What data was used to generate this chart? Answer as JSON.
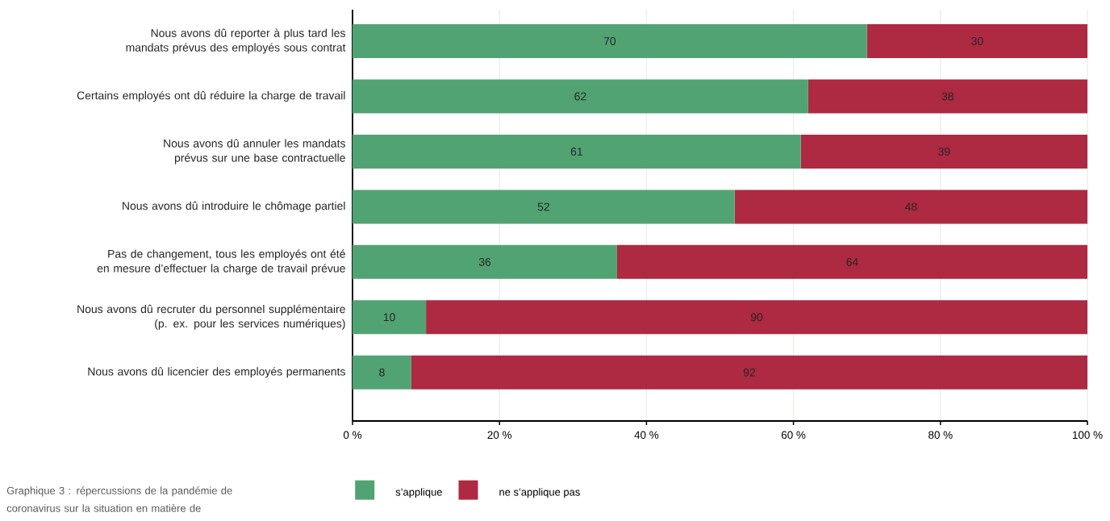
{
  "chart_data": {
    "type": "bar",
    "orientation": "horizontal",
    "stacked": true,
    "categories": [
      "Nous avons dû reporter à plus tard les mandats prévus des employés sous contrat",
      "Certains employés ont dû réduire la charge de travail",
      "Nous avons dû annuler les mandats prévus sur une base contractuelle",
      "Nous avons dû introduire le chômage partiel",
      "Pas de changement, tous les employés ont été en mesure d’effectuer la charge de travail prévue",
      "Nous avons dû recruter du personnel supplémentaire (p. ex. pour les services numériques)",
      "Nous avons dû licencier des employés permanents"
    ],
    "series": [
      {
        "name": "s’applique",
        "color": "#52a373",
        "values": [
          70,
          62,
          61,
          52,
          36,
          10,
          8
        ]
      },
      {
        "name": "ne s’applique pas",
        "color": "#ae2942",
        "values": [
          30,
          38,
          39,
          48,
          64,
          90,
          92
        ]
      }
    ],
    "xlim": [
      0,
      100
    ],
    "xticks": [
      {
        "value": 0,
        "label": "0 %"
      },
      {
        "value": 20,
        "label": "20 %"
      },
      {
        "value": 40,
        "label": "40 %"
      },
      {
        "value": 60,
        "label": "60 %"
      },
      {
        "value": 80,
        "label": "80 %"
      },
      {
        "value": 100,
        "label": "100 %"
      }
    ],
    "grid": "x",
    "legend": "bottom",
    "data_labels": true,
    "annotations": [
      "Graphique 3 : répercussions de la pandémie de coronavirus sur la situation en matière de"
    ]
  }
}
